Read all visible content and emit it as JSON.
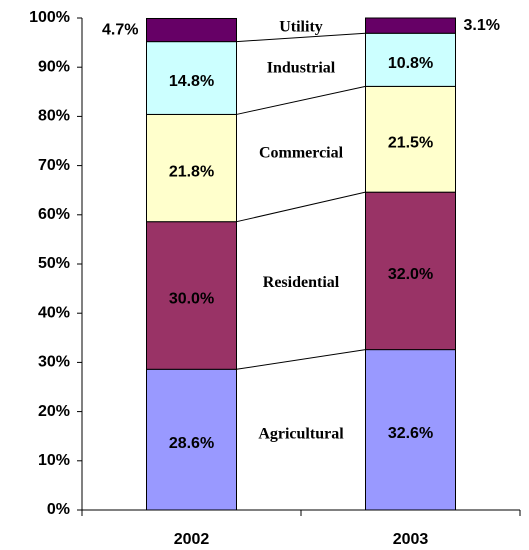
{
  "chart_data": {
    "type": "stacked_bar",
    "categories": [
      "2002",
      "2003"
    ],
    "series": [
      {
        "name": "Agricultural",
        "color": "#9999ff",
        "values": [
          28.6,
          32.6
        ],
        "value_labels": [
          "28.6%",
          "32.6%"
        ]
      },
      {
        "name": "Residential",
        "color": "#993366",
        "values": [
          30.0,
          32.0
        ],
        "value_labels": [
          "30.0%",
          "32.0%"
        ]
      },
      {
        "name": "Commercial",
        "color": "#ffffcc",
        "values": [
          21.8,
          21.5
        ],
        "value_labels": [
          "21.8%",
          "21.5%"
        ]
      },
      {
        "name": "Industrial",
        "color": "#ccffff",
        "values": [
          14.8,
          10.8
        ],
        "value_labels": [
          "14.8%",
          "10.8%"
        ]
      },
      {
        "name": "Utility",
        "color": "#660066",
        "values": [
          4.7,
          3.1
        ],
        "value_labels": [
          "4.7%",
          "3.1%"
        ]
      }
    ],
    "ylim": [
      0,
      100
    ],
    "yticks": [
      {
        "value": 0,
        "label": "0%"
      },
      {
        "value": 10,
        "label": "10%"
      },
      {
        "value": 20,
        "label": "20%"
      },
      {
        "value": 30,
        "label": "30%"
      },
      {
        "value": 40,
        "label": "40%"
      },
      {
        "value": 50,
        "label": "50%"
      },
      {
        "value": 60,
        "label": "60%"
      },
      {
        "value": 70,
        "label": "70%"
      },
      {
        "value": 80,
        "label": "80%"
      },
      {
        "value": 90,
        "label": "90%"
      },
      {
        "value": 100,
        "label": "100%"
      }
    ],
    "grid": false
  }
}
